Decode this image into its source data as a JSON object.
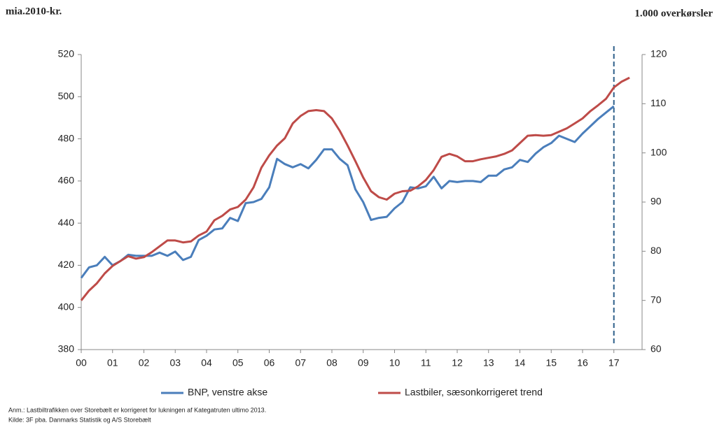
{
  "chart_data": {
    "type": "line",
    "left_axis_label": "mia.2010-kr.",
    "right_axis_label": "1.000 overkørsler",
    "notes": [
      "Anm.: Lastbiltrafikken over Storebælt er korrigeret for lukningen af Kategatruten ultimo 2013.",
      "Kilde: 3F pba. Danmarks Statistik og A/S Storebælt"
    ],
    "xlim": [
      2000,
      2017.9
    ],
    "xticks": [
      {
        "value": 2000,
        "label": "00"
      },
      {
        "value": 2001,
        "label": "01"
      },
      {
        "value": 2002,
        "label": "02"
      },
      {
        "value": 2003,
        "label": "03"
      },
      {
        "value": 2004,
        "label": "04"
      },
      {
        "value": 2005,
        "label": "05"
      },
      {
        "value": 2006,
        "label": "06"
      },
      {
        "value": 2007,
        "label": "07"
      },
      {
        "value": 2008,
        "label": "08"
      },
      {
        "value": 2009,
        "label": "09"
      },
      {
        "value": 2010,
        "label": "10"
      },
      {
        "value": 2011,
        "label": "11"
      },
      {
        "value": 2012,
        "label": "12"
      },
      {
        "value": 2013,
        "label": "13"
      },
      {
        "value": 2014,
        "label": "14"
      },
      {
        "value": 2015,
        "label": "15"
      },
      {
        "value": 2016,
        "label": "16"
      },
      {
        "value": 2017,
        "label": "17"
      }
    ],
    "ylim": [
      380,
      520
    ],
    "yticks": [
      380,
      400,
      420,
      440,
      460,
      480,
      500,
      520
    ],
    "y2lim": [
      60,
      120
    ],
    "y2ticks": [
      60,
      70,
      80,
      90,
      100,
      110,
      120
    ],
    "vline": 2017,
    "vline_color": "#2e5f8a",
    "series": [
      {
        "name": "BNP, venstre akse",
        "color": "#4a7ebb",
        "axis": "y",
        "x": [
          2000,
          2000.25,
          2000.5,
          2000.75,
          2001,
          2001.25,
          2001.5,
          2001.75,
          2002,
          2002.25,
          2002.5,
          2002.75,
          2003,
          2003.25,
          2003.5,
          2003.75,
          2004,
          2004.25,
          2004.5,
          2004.75,
          2005,
          2005.25,
          2005.5,
          2005.75,
          2006,
          2006.25,
          2006.5,
          2006.75,
          2007,
          2007.25,
          2007.5,
          2007.75,
          2008,
          2008.25,
          2008.5,
          2008.75,
          2009,
          2009.25,
          2009.5,
          2009.75,
          2010,
          2010.25,
          2010.5,
          2010.75,
          2011,
          2011.25,
          2011.5,
          2011.75,
          2012,
          2012.25,
          2012.5,
          2012.75,
          2013,
          2013.25,
          2013.5,
          2013.75,
          2014,
          2014.25,
          2014.5,
          2014.75,
          2015,
          2015.25,
          2015.5,
          2015.75,
          2016,
          2016.25,
          2016.5,
          2016.75,
          2017
        ],
        "values": [
          414,
          419,
          420,
          424,
          420,
          422,
          425,
          424.5,
          424.5,
          424.5,
          426,
          424.5,
          426.5,
          422.5,
          424,
          432,
          434,
          437,
          437.5,
          442.5,
          441,
          449.5,
          450,
          451.5,
          457,
          470.5,
          468,
          466.5,
          468,
          466,
          470,
          475,
          475,
          470.5,
          467.5,
          456,
          450,
          441.5,
          442.5,
          443,
          447,
          450,
          457,
          456.5,
          457.5,
          462,
          456.5,
          460,
          459.5,
          460,
          460,
          459.5,
          462.5,
          462.5,
          465.5,
          466.5,
          470,
          469,
          473,
          476,
          478,
          481.5,
          480,
          478.5,
          482.5,
          486,
          489.5,
          492.5,
          495.5
        ]
      },
      {
        "name": "Lastbiler, sæsonkorrigeret trend",
        "color": "#be4b48",
        "axis": "y2",
        "x": [
          2000,
          2000.25,
          2000.5,
          2000.75,
          2001,
          2001.25,
          2001.5,
          2001.75,
          2002,
          2002.25,
          2002.5,
          2002.75,
          2003,
          2003.25,
          2003.5,
          2003.75,
          2004,
          2004.25,
          2004.5,
          2004.75,
          2005,
          2005.25,
          2005.5,
          2005.75,
          2006,
          2006.25,
          2006.5,
          2006.75,
          2007,
          2007.25,
          2007.5,
          2007.75,
          2008,
          2008.25,
          2008.5,
          2008.75,
          2009,
          2009.25,
          2009.5,
          2009.75,
          2010,
          2010.25,
          2010.5,
          2010.75,
          2011,
          2011.25,
          2011.5,
          2011.75,
          2012,
          2012.25,
          2012.5,
          2012.75,
          2013,
          2013.25,
          2013.5,
          2013.75,
          2014,
          2014.25,
          2014.5,
          2014.75,
          2015,
          2015.25,
          2015.5,
          2015.75,
          2016,
          2016.25,
          2016.5,
          2016.75,
          2017,
          2017.25,
          2017.5
        ],
        "values": [
          70,
          72,
          73.5,
          75.5,
          77,
          78,
          79,
          78.5,
          78.8,
          79.8,
          81,
          82.2,
          82.2,
          81.8,
          82,
          83.2,
          84,
          86.3,
          87.2,
          88.5,
          89,
          90.5,
          93,
          97,
          99.5,
          101.5,
          103,
          106,
          107.5,
          108.5,
          108.7,
          108.5,
          107,
          104.5,
          101.5,
          98.3,
          95,
          92.2,
          91,
          90.5,
          91.7,
          92.2,
          92.3,
          93.2,
          94.5,
          96.5,
          99.2,
          99.8,
          99.3,
          98.3,
          98.3,
          98.7,
          99,
          99.3,
          99.8,
          100.5,
          102,
          103.5,
          103.6,
          103.5,
          103.6,
          104.3,
          105,
          106,
          107,
          108.5,
          109.7,
          111,
          113.3,
          114.5,
          115.3
        ]
      }
    ]
  }
}
